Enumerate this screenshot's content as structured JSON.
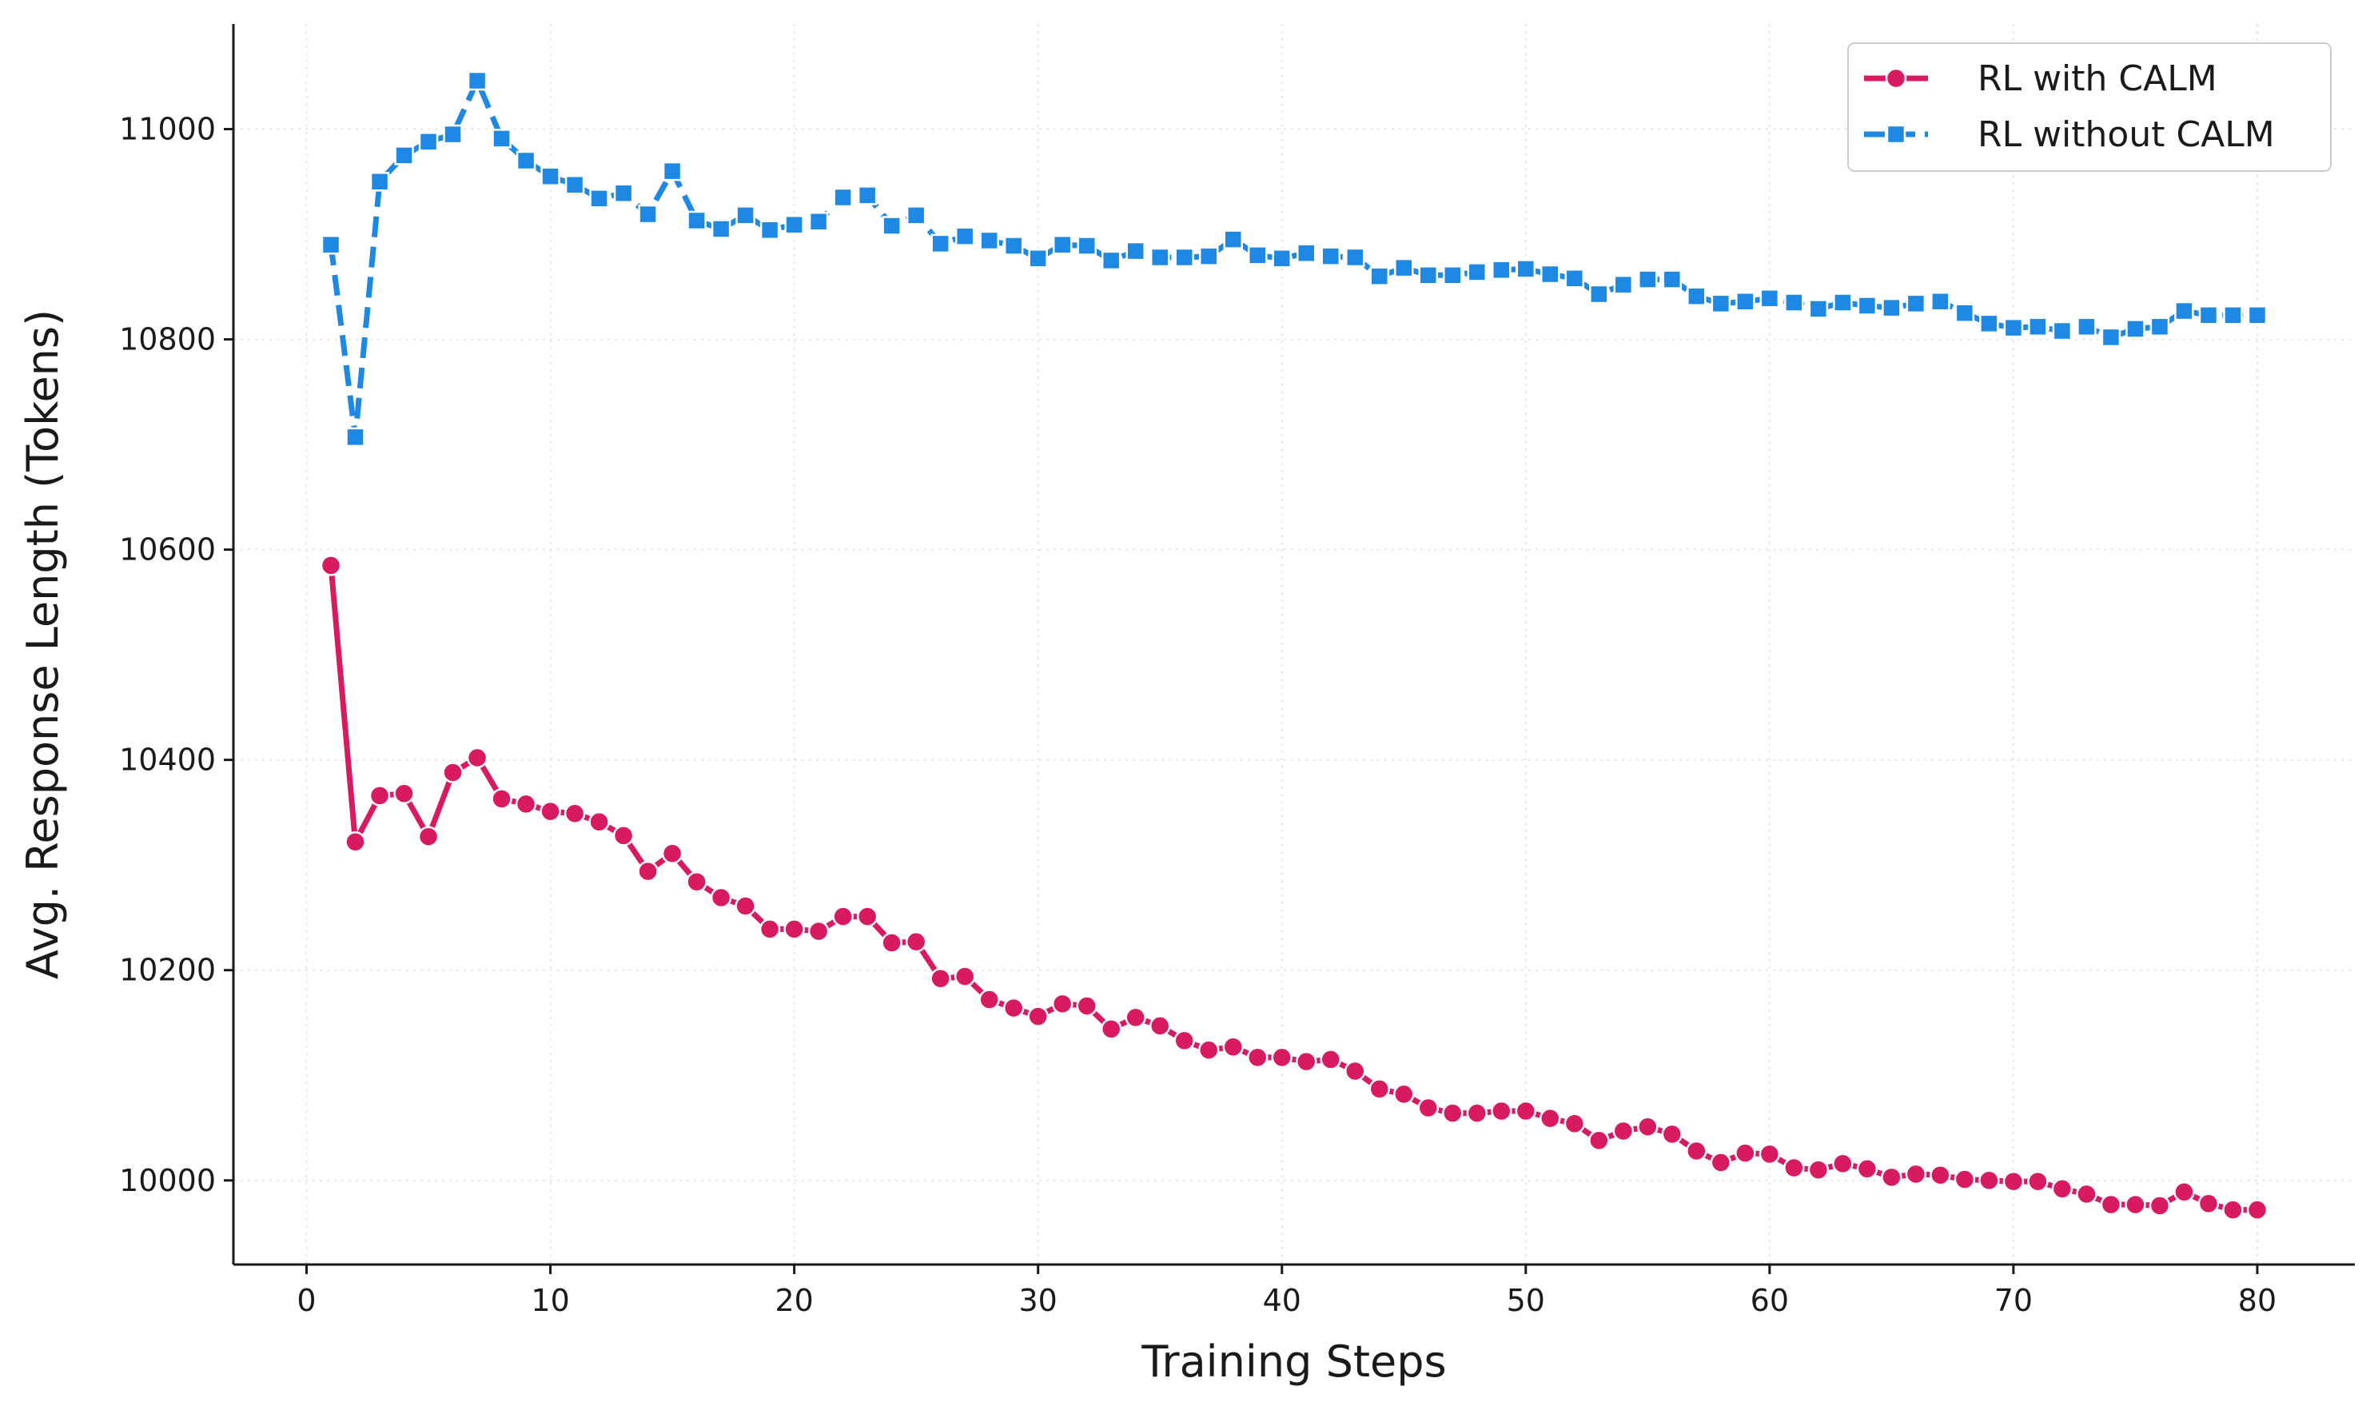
{
  "chart_data": {
    "type": "line",
    "title": "",
    "xlabel": "Training Steps",
    "ylabel": "Avg. Response Length (Tokens)",
    "xlim": [
      -3,
      84
    ],
    "ylim": [
      9920,
      11100
    ],
    "xticks": [
      0,
      10,
      20,
      30,
      40,
      50,
      60,
      70,
      80
    ],
    "yticks": [
      10000,
      10200,
      10400,
      10600,
      10800,
      11000
    ],
    "grid": true,
    "legend_position": "top-right",
    "series": [
      {
        "name": "RL with CALM",
        "color": "#d81b60",
        "marker": "circle",
        "linestyle": "solid",
        "x": [
          1,
          2,
          3,
          4,
          5,
          6,
          7,
          8,
          9,
          10,
          11,
          12,
          13,
          14,
          15,
          16,
          17,
          18,
          19,
          20,
          21,
          22,
          23,
          24,
          25,
          26,
          27,
          28,
          29,
          30,
          31,
          32,
          33,
          34,
          35,
          36,
          37,
          38,
          39,
          40,
          41,
          42,
          43,
          44,
          45,
          46,
          47,
          48,
          49,
          50,
          51,
          52,
          53,
          54,
          55,
          56,
          57,
          58,
          59,
          60,
          61,
          62,
          63,
          64,
          65,
          66,
          67,
          68,
          69,
          70,
          71,
          72,
          73,
          74,
          75,
          76,
          77,
          78,
          79,
          80
        ],
        "values": [
          10585,
          10322,
          10366,
          10368,
          10327,
          10388,
          10402,
          10363,
          10358,
          10351,
          10349,
          10341,
          10328,
          10294,
          10311,
          10284,
          10269,
          10261,
          10239,
          10239,
          10237,
          10251,
          10251,
          10226,
          10227,
          10192,
          10194,
          10172,
          10164,
          10156,
          10168,
          10166,
          10144,
          10155,
          10147,
          10133,
          10124,
          10127,
          10117,
          10117,
          10113,
          10115,
          10104,
          10087,
          10082,
          10069,
          10064,
          10064,
          10066,
          10066,
          10059,
          10054,
          10038,
          10047,
          10051,
          10044,
          10028,
          10017,
          10026,
          10025,
          10012,
          10010,
          10016,
          10011,
          10003,
          10006,
          10005,
          10001,
          10000,
          9999,
          9999,
          9992,
          9987,
          9977,
          9977,
          9976,
          9989,
          9978,
          9972,
          9972
        ]
      },
      {
        "name": "RL without CALM",
        "color": "#1e88e5",
        "marker": "square",
        "linestyle": "dashed",
        "x": [
          1,
          2,
          3,
          4,
          5,
          6,
          7,
          8,
          9,
          10,
          11,
          12,
          13,
          14,
          15,
          16,
          17,
          18,
          19,
          20,
          21,
          22,
          23,
          24,
          25,
          26,
          27,
          28,
          29,
          30,
          31,
          32,
          33,
          34,
          35,
          36,
          37,
          38,
          39,
          40,
          41,
          42,
          43,
          44,
          45,
          46,
          47,
          48,
          49,
          50,
          51,
          52,
          53,
          54,
          55,
          56,
          57,
          58,
          59,
          60,
          61,
          62,
          63,
          64,
          65,
          66,
          67,
          68,
          69,
          70,
          71,
          72,
          73,
          74,
          75,
          76,
          77,
          78,
          79,
          80
        ],
        "values": [
          10890,
          10707,
          10950,
          10975,
          10988,
          10995,
          11046,
          10991,
          10970,
          10955,
          10947,
          10934,
          10939,
          10919,
          10960,
          10913,
          10905,
          10918,
          10904,
          10909,
          10912,
          10935,
          10937,
          10908,
          10918,
          10891,
          10898,
          10894,
          10889,
          10877,
          10890,
          10889,
          10875,
          10884,
          10878,
          10878,
          10879,
          10895,
          10880,
          10877,
          10882,
          10879,
          10878,
          10860,
          10868,
          10861,
          10861,
          10864,
          10866,
          10867,
          10862,
          10858,
          10843,
          10852,
          10857,
          10857,
          10841,
          10834,
          10836,
          10839,
          10835,
          10829,
          10835,
          10832,
          10830,
          10834,
          10836,
          10825,
          10815,
          10811,
          10812,
          10808,
          10812,
          10802,
          10810,
          10812,
          10827,
          10823,
          10823,
          10823
        ]
      }
    ]
  }
}
